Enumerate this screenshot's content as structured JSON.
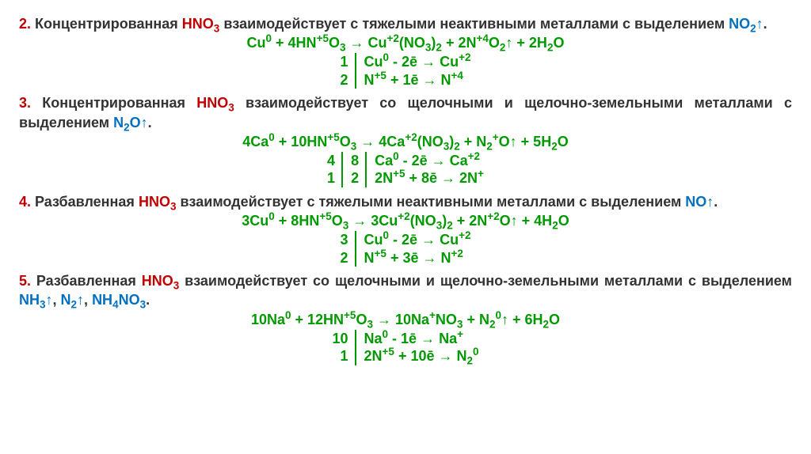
{
  "colors": {
    "section_number": "#c00000",
    "hno3": "#c00000",
    "product": "#0070c0",
    "text": "#333333",
    "equation": "#009900",
    "background": "#ffffff"
  },
  "typography": {
    "font_family": "Arial",
    "base_size_pt": 14,
    "weight": "bold"
  },
  "sections": [
    {
      "num": "2.",
      "text_before": " Концентрированная ",
      "hno3": "HNO",
      "hno3_sub": "3",
      "text_mid": " взаимодействует с тяжелыми неактивными металлами с выделением ",
      "product": "NO",
      "product_sub": "2",
      "product_arrow": "↑",
      "text_after": ".",
      "equation_html": "Cu<sup>0</sup> + 4HN<sup>+5</sup>O<sub>3</sub> → Cu<sup>+2</sup>(NO<sub>3</sub>)<sub>2</sub> + 2N<sup>+4</sup>O<sub>2</sub>↑ + 2H<sub>2</sub>O",
      "half_cols": 2,
      "half": [
        [
          "1",
          "Cu<sup>0</sup> - 2ē → Cu<sup>+2</sup>"
        ],
        [
          "2",
          "N<sup>+5</sup> + 1ē → N<sup>+4</sup>"
        ]
      ]
    },
    {
      "num": "3.",
      "text_before": " Концентрированная ",
      "hno3": "HNO",
      "hno3_sub": "3",
      "text_mid": " взаимодействует со щелочными и щелочно-земельными металлами с выделением ",
      "product": "N",
      "product_sub": "2",
      "product_extra": "O↑",
      "text_after": ".",
      "equation_html": "4Ca<sup>0</sup> + 10HN<sup>+5</sup>O<sub>3</sub> → 4Ca<sup>+2</sup>(NO<sub>3</sub>)<sub>2</sub> + N<sub>2</sub><sup>+</sup>O↑ + 5H<sub>2</sub>O",
      "half_cols": 3,
      "half": [
        [
          "4",
          "8",
          "Ca<sup>0</sup> - 2ē → Ca<sup>+2</sup>"
        ],
        [
          "1",
          "2",
          "2N<sup>+5</sup> + 8ē → 2N<sup>+</sup>"
        ]
      ]
    },
    {
      "num": "4.",
      "text_before": " Разбавленная ",
      "hno3": "HNO",
      "hno3_sub": "3",
      "text_mid": " взаимодействует с тяжелыми неактивными металлами с выделением ",
      "product": "NO↑",
      "product_sub": "",
      "text_after": ".",
      "equation_html": "3Cu<sup>0</sup> + 8HN<sup>+5</sup>O<sub>3</sub> → 3Cu<sup>+2</sup>(NO<sub>3</sub>)<sub>2</sub> + 2N<sup>+2</sup>O↑ + 4H<sub>2</sub>O",
      "half_cols": 2,
      "half": [
        [
          "3",
          "Cu<sup>0</sup> - 2ē → Cu<sup>+2</sup>"
        ],
        [
          "2",
          "N<sup>+5</sup> + 3ē → N<sup>+2</sup>"
        ]
      ]
    },
    {
      "num": "5.",
      "text_before": " Разбавленная ",
      "hno3": "HNO",
      "hno3_sub": "3",
      "text_mid": " взаимодействует со щелочными и щелочно-земельными металлами с выделением ",
      "product_multi": [
        {
          "t": "NH",
          "sub": "3",
          "tail": "↑"
        },
        {
          "t": "N",
          "sub": "2",
          "tail": "↑"
        },
        {
          "t": "NH",
          "sub": "4",
          "tail": "NO",
          "sub2": "3"
        }
      ],
      "text_after": ".",
      "equation_html": "10Na<sup>0</sup> + 12HN<sup>+5</sup>O<sub>3</sub> → 10Na<sup>+</sup>NO<sub>3</sub> + N<sub>2</sub><sup>0</sup>↑ + 6H<sub>2</sub>O",
      "half_cols": 2,
      "half": [
        [
          "10",
          "Na<sup>0</sup> - 1ē → Na<sup>+</sup>"
        ],
        [
          "1",
          "2N<sup>+5</sup> + 10ē → N<sub>2</sub><sup>0</sup>"
        ]
      ]
    }
  ]
}
